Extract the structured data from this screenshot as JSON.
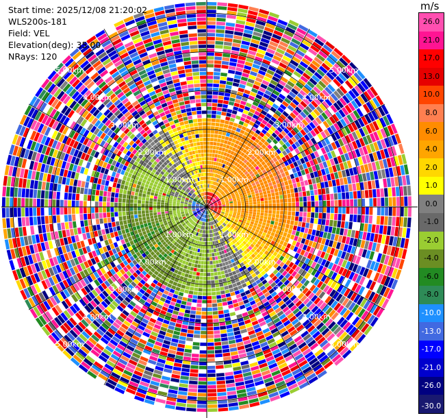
{
  "header": {
    "start_time": "Start time: 2025/12/08 21:20:02",
    "instrument": "WLS200s-181",
    "field": "Field: VEL",
    "elevation": "Elevation(deg): 35.00",
    "nrays": "NRays: 120"
  },
  "colorbar": {
    "unit": "m/s",
    "ticks": [
      "26.0",
      "21.0",
      "17.0",
      "13.0",
      "10.0",
      "8.0",
      "6.0",
      "4.0",
      "2.0",
      "1.0",
      "0.0",
      "-1.0",
      "-2.0",
      "-4.0",
      "-6.0",
      "-8.0",
      "-10.0",
      "-13.0",
      "-17.0",
      "-21.0",
      "-26.0",
      "-30.0"
    ],
    "colors": [
      "#ff4fb0",
      "#ff1493",
      "#ff0000",
      "#e60000",
      "#ff4500",
      "#ff7f50",
      "#ff8c00",
      "#ffa500",
      "#ffd700",
      "#ffff00",
      "#808080",
      "#696969",
      "#9acd32",
      "#6b8e23",
      "#228b22",
      "#2e8b57",
      "#1e90ff",
      "#4169e1",
      "#0000ff",
      "#0000cd",
      "#000080",
      "#191970"
    ]
  },
  "chart_data": {
    "type": "heatmap",
    "title": "",
    "projection": "PPI polar",
    "n_rays": 120,
    "elevation_deg": 35.0,
    "range_rings_km": [
      1.0,
      2.0,
      3.0,
      4.0,
      5.0
    ],
    "range_labels": [
      "1.00km",
      "2.00km",
      "3.00km",
      "4.00km",
      "5.00km"
    ],
    "max_range_km": 5.3,
    "velocity_ticks": [
      26.0,
      21.0,
      17.0,
      13.0,
      10.0,
      8.0,
      6.0,
      4.0,
      2.0,
      1.0,
      0.0,
      -1.0,
      -2.0,
      -4.0,
      -6.0,
      -8.0,
      -10.0,
      -13.0,
      -17.0,
      -21.0,
      -26.0,
      -30.0
    ],
    "vmin": -30.0,
    "vmax": 30.0,
    "pattern": "near-range dipole: positive (yellow/orange) toward east and south, negative (green/blue) toward west and north; noisy values beyond ~2.2 km"
  }
}
